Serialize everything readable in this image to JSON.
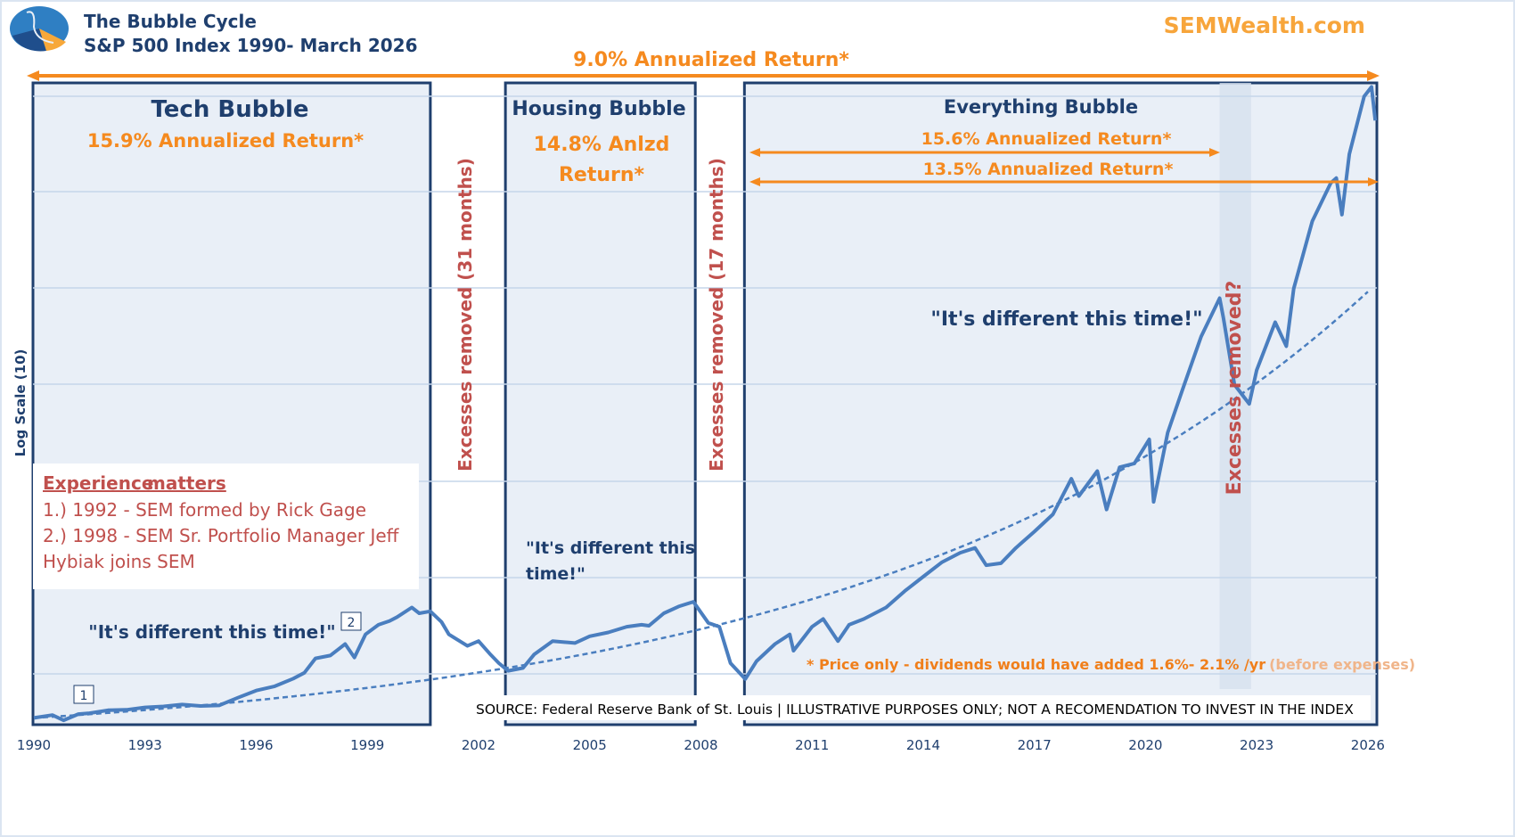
{
  "header": {
    "title": "The Bubble Cycle",
    "subtitle": "S&P 500 Index 1990- March 2026",
    "brand": "SEMWealth.com"
  },
  "colors": {
    "navy": "#1f3f6e",
    "orange": "#f58a1f",
    "red": "#c0504d",
    "line": "#4a7ebf",
    "box_fill": "#e9eff7",
    "band": "#d6e1ee"
  },
  "annotations": {
    "overall_return": "9.0% Annualized Return*",
    "tech": {
      "title": "Tech Bubble",
      "return": "15.9% Annualized Return*",
      "quote": "\"It's different this time!\""
    },
    "housing": {
      "title": "Housing Bubble",
      "return_line1": "14.8% Anlzd",
      "return_line2": "Return*",
      "quote_line1": "\"It's different this",
      "quote_line2": "time!\""
    },
    "everything": {
      "title": "Everything Bubble",
      "return_a": "15.6% Annualized Return*",
      "return_b": "13.5% Annualized Return*",
      "quote": "\"It's different this time!\""
    },
    "excess_1": "Excesses removed (31 months)",
    "excess_2": "Excesses removed (17 months)",
    "excess_3": "Excesses removed?",
    "experience": {
      "heading_a": "Experience",
      "heading_b": "matters",
      "item1": "1.) 1992 - SEM formed by Rick Gage",
      "item2a": "2.) 1998 - SEM Sr. Portfolio Manager Jeff",
      "item2b": "Hybiak joins SEM"
    },
    "marker1": "1",
    "marker2": "2",
    "footnote_a": "* Price only - dividends would have added 1.6%- 2.1% /yr",
    "footnote_b": "(before expenses)",
    "source": "SOURCE: Federal Reserve Bank of St. Louis | ILLUSTRATIVE PURPOSES ONLY; NOT A RECOMENDATION TO INVEST IN THE INDEX"
  },
  "chart_data": {
    "type": "line",
    "title": "The Bubble Cycle",
    "ylabel": "Log Scale (10)",
    "xlabel": "",
    "xlim": [
      1990,
      2026.3
    ],
    "x_ticks": [
      "1990",
      "1993",
      "1996",
      "1999",
      "2002",
      "2005",
      "2008",
      "2011",
      "2014",
      "2017",
      "2020",
      "2023",
      "2026"
    ],
    "series": [
      {
        "name": "S&P 500 Index",
        "x": [
          1990.0,
          1990.5,
          1990.8,
          1991.2,
          1991.5,
          1992,
          1992.5,
          1993,
          1993.5,
          1994,
          1994.5,
          1995,
          1995.5,
          1996,
          1996.5,
          1997,
          1997.3,
          1997.6,
          1998,
          1998.4,
          1998.65,
          1998.95,
          1999.3,
          1999.6,
          1999.8,
          2000.2,
          2000.4,
          2000.7,
          2001,
          2001.2,
          2001.7,
          2002,
          2002.3,
          2002.55,
          2002.8,
          2003.2,
          2003.5,
          2004,
          2004.6,
          2005,
          2005.5,
          2006,
          2006.4,
          2006.6,
          2007,
          2007.4,
          2007.8,
          2008.2,
          2008.5,
          2008.8,
          2009.2,
          2009.5,
          2010,
          2010.4,
          2010.5,
          2011,
          2011.3,
          2011.7,
          2012,
          2012.4,
          2013,
          2013.5,
          2014,
          2014.5,
          2015,
          2015.4,
          2015.7,
          2016.1,
          2016.5,
          2017,
          2017.5,
          2018,
          2018.2,
          2018.7,
          2018.95,
          2019.3,
          2019.7,
          2020.1,
          2020.22,
          2020.6,
          2021,
          2021.5,
          2022,
          2022.1,
          2022.4,
          2022.8,
          2023,
          2023.5,
          2023.8,
          2024,
          2024.5,
          2025,
          2025.15,
          2025.3,
          2025.5,
          2025.9,
          2026.1,
          2026.2
        ],
        "values": [
          330,
          360,
          305,
          370,
          380,
          410,
          415,
          440,
          450,
          470,
          455,
          460,
          540,
          615,
          660,
          740,
          800,
          950,
          980,
          1100,
          960,
          1200,
          1300,
          1340,
          1380,
          1480,
          1420,
          1440,
          1330,
          1200,
          1080,
          1130,
          1000,
          900,
          820,
          850,
          990,
          1130,
          1110,
          1180,
          1220,
          1280,
          1300,
          1290,
          1420,
          1490,
          1540,
          1320,
          1280,
          900,
          735,
          920,
          1100,
          1200,
          1030,
          1280,
          1360,
          1130,
          1300,
          1360,
          1480,
          1650,
          1800,
          1950,
          2050,
          2100,
          1920,
          1940,
          2100,
          2270,
          2450,
          2820,
          2640,
          2900,
          2500,
          2940,
          2980,
          3230,
          2580,
          3300,
          3750,
          4300,
          4700,
          4500,
          3800,
          3600,
          3950,
          4450,
          4200,
          4800,
          5500,
          5900,
          5950,
          5570,
          6200,
          6800,
          6900,
          6550
        ]
      },
      {
        "name": "Long-term trend",
        "start_value": 330,
        "annual_growth_pct": 7.7,
        "style": "dashed"
      }
    ],
    "regions": [
      {
        "name": "Tech Bubble",
        "x": [
          1990,
          2000.7
        ]
      },
      {
        "name": "Housing Bubble",
        "x": [
          2002.75,
          2007.85
        ]
      },
      {
        "name": "Everything Bubble",
        "x": [
          2009.2,
          2026.3
        ]
      },
      {
        "name": "Excesses removed?",
        "x": [
          2022.0,
          2022.85
        ]
      }
    ],
    "grid": true,
    "legend": "none"
  }
}
